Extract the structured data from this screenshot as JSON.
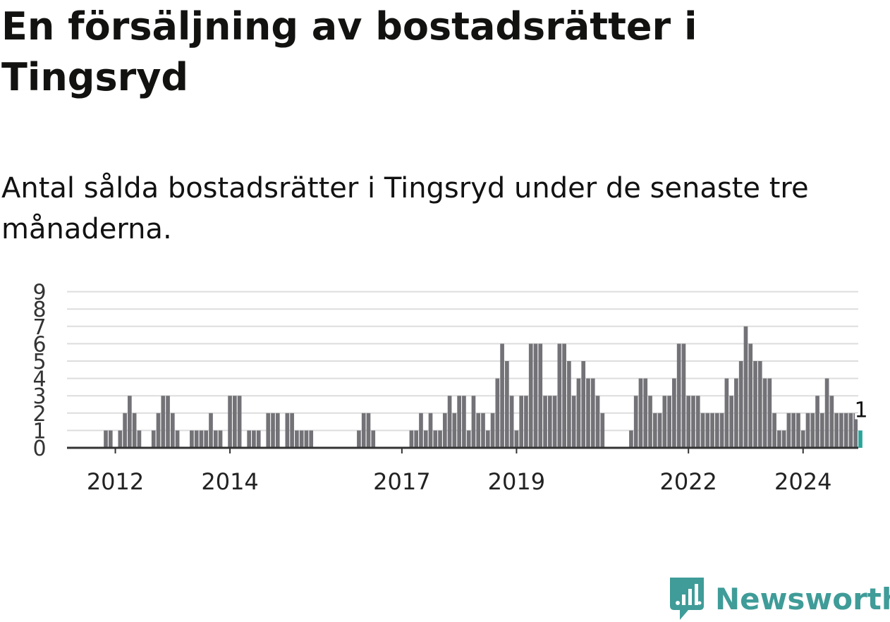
{
  "title": "En försäljning av bostadsrätter i Tingsryd",
  "subtitle": "Antal sålda bostadsrätter i Tingsryd under de senaste tre månaderna.",
  "brand": "Newsworthy",
  "colors": {
    "bar": "#737277",
    "highlight": "#2aa49a",
    "grid": "#dddddd",
    "axis": "#333333",
    "brand": "#3f9c98"
  },
  "chart_data": {
    "type": "bar",
    "x_unit": "month",
    "start": "2011-11",
    "end": "2025-03",
    "ylim": [
      0,
      9
    ],
    "yticks": [
      0,
      1,
      2,
      3,
      4,
      5,
      6,
      7,
      8,
      9
    ],
    "xtick_labels": [
      "2012",
      "2014",
      "2017",
      "2019",
      "2022",
      "2024"
    ],
    "grid": true,
    "values": [
      1,
      1,
      0,
      1,
      2,
      3,
      2,
      1,
      0,
      0,
      1,
      2,
      3,
      3,
      2,
      1,
      0,
      0,
      1,
      1,
      1,
      1,
      2,
      1,
      1,
      0,
      3,
      3,
      3,
      0,
      1,
      1,
      1,
      0,
      2,
      2,
      2,
      0,
      2,
      2,
      1,
      1,
      1,
      1,
      0,
      0,
      0,
      0,
      0,
      0,
      0,
      0,
      0,
      1,
      2,
      2,
      1,
      0,
      0,
      0,
      0,
      0,
      0,
      0,
      1,
      1,
      2,
      1,
      2,
      1,
      1,
      2,
      3,
      2,
      3,
      3,
      1,
      3,
      2,
      2,
      1,
      2,
      4,
      6,
      5,
      3,
      1,
      3,
      3,
      6,
      6,
      6,
      3,
      3,
      3,
      6,
      6,
      5,
      3,
      4,
      5,
      4,
      4,
      3,
      2,
      0,
      0,
      0,
      0,
      0,
      1,
      3,
      4,
      4,
      3,
      2,
      2,
      3,
      3,
      4,
      6,
      6,
      3,
      3,
      3,
      2,
      2,
      2,
      2,
      2,
      4,
      3,
      4,
      5,
      7,
      6,
      5,
      5,
      4,
      4,
      2,
      1,
      1,
      2,
      2,
      2,
      1,
      2,
      2,
      3,
      2,
      4,
      3,
      2,
      2,
      2,
      2,
      2,
      1
    ],
    "highlight": {
      "label": "1",
      "value": 1
    }
  }
}
